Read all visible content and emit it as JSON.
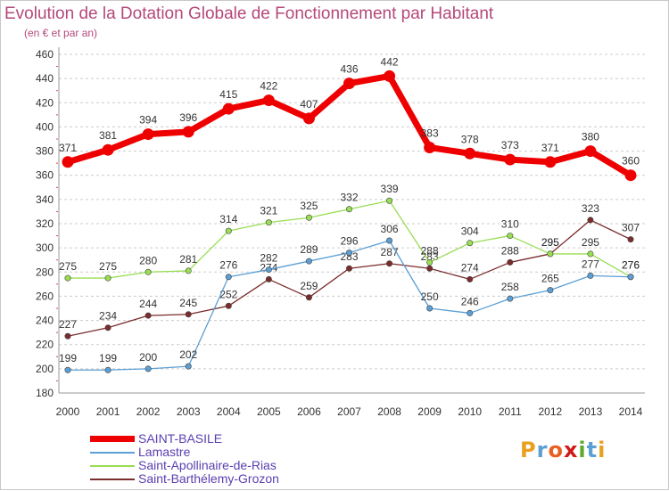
{
  "title": "Evolution de la Dotation Globale de Fonctionnement par Habitant",
  "subtitle": "(en € et par an)",
  "colors": {
    "title": "#b5487a",
    "axis": "#999999",
    "grid": "#cccccc"
  },
  "logo": {
    "letters": [
      "P",
      "r",
      "o",
      "x",
      "i",
      "t",
      "i"
    ]
  },
  "chart_data": {
    "type": "line",
    "title": "Evolution de la Dotation Globale de Fonctionnement par Habitant",
    "subtitle": "(en € et par an)",
    "x": [
      "2000",
      "2001",
      "2002",
      "2003",
      "2004",
      "2005",
      "2006",
      "2007",
      "2008",
      "2009",
      "2010",
      "2011",
      "2012",
      "2013",
      "2014"
    ],
    "ylim": [
      180,
      460
    ],
    "yticks": [
      180,
      200,
      220,
      240,
      260,
      280,
      300,
      320,
      340,
      360,
      380,
      400,
      420,
      440,
      460
    ],
    "grid": "horizontal dashed",
    "legend_position": "bottom-left",
    "series": [
      {
        "name": "Saint-Barthélemy-Grozon",
        "color": "#7a2c2c",
        "values": [
          227,
          234,
          244,
          245,
          252,
          274,
          259,
          283,
          287,
          283,
          274,
          288,
          295,
          323,
          307
        ]
      },
      {
        "name": "Saint-Apollinaire-de-Rias",
        "color": "#99dd55",
        "values": [
          275,
          275,
          280,
          281,
          314,
          321,
          325,
          332,
          339,
          288,
          304,
          310,
          295,
          295,
          276
        ]
      },
      {
        "name": "Lamastre",
        "color": "#5b9fd4",
        "values": [
          199,
          199,
          200,
          202,
          276,
          282,
          289,
          296,
          306,
          250,
          246,
          258,
          265,
          277,
          276
        ]
      },
      {
        "name": "SAINT-BASILE",
        "color": "#ee0000",
        "values": [
          371,
          381,
          394,
          396,
          415,
          422,
          407,
          436,
          442,
          383,
          378,
          373,
          371,
          380,
          360
        ]
      }
    ],
    "legend_order": [
      "SAINT-BASILE",
      "Lamastre",
      "Saint-Apollinaire-de-Rias",
      "Saint-Barthélemy-Grozon"
    ]
  }
}
